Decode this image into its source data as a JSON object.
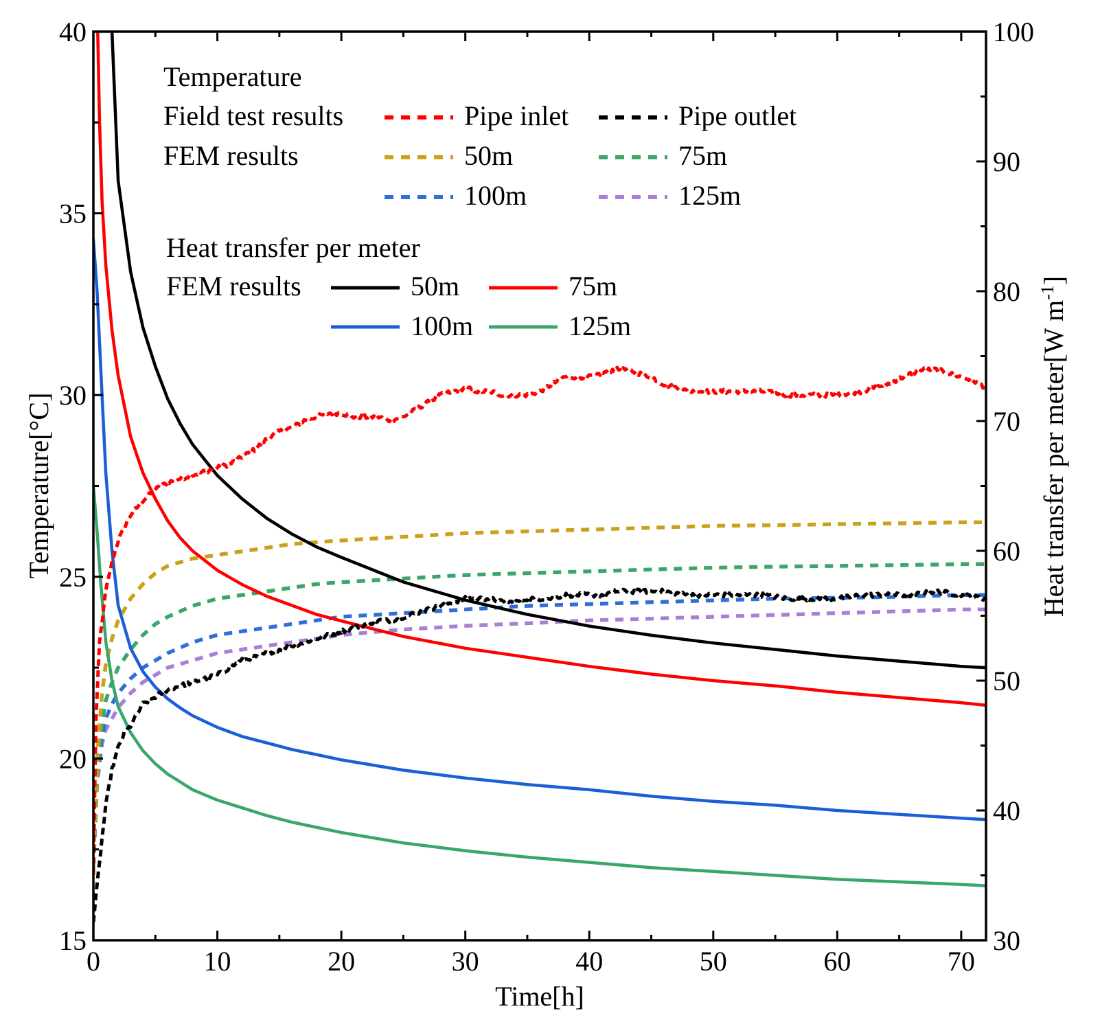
{
  "chart_data": {
    "type": "line",
    "xlabel": "Time[h]",
    "ylabel_left": "Temperature[°C]",
    "ylabel_right_main": "Heat transfer per meter[W m",
    "ylabel_right_sup": "-1",
    "ylabel_right_end": "]",
    "xlim": [
      0,
      72
    ],
    "ylim_left": [
      15,
      40
    ],
    "ylim_right": [
      30,
      100
    ],
    "x_ticks": [
      "0",
      "10",
      "20",
      "30",
      "40",
      "50",
      "60",
      "70"
    ],
    "y_left_ticks": [
      "15",
      "20",
      "25",
      "30",
      "35",
      "40"
    ],
    "y_right_ticks": [
      "30",
      "40",
      "50",
      "60",
      "70",
      "80",
      "90",
      "100"
    ],
    "legend": {
      "temperature_title": "Temperature",
      "field_label": "Field test results",
      "fem_label": "FEM results",
      "heat_title": "Heat transfer per meter",
      "heat_fem_label": "FEM results"
    },
    "temperature_series": [
      {
        "name": "Pipe inlet",
        "group": "Field test results",
        "color": "#ff0000",
        "noisy": true,
        "x": [
          0,
          0.2,
          0.5,
          1,
          1.5,
          2,
          3,
          4,
          5,
          6,
          7,
          8,
          9,
          10,
          11,
          12,
          13,
          14,
          15,
          16,
          17,
          18,
          19,
          20,
          21,
          22,
          23,
          24,
          25,
          26,
          27,
          28,
          29,
          30,
          31,
          32,
          33,
          34,
          35,
          36,
          37,
          38,
          39,
          40,
          41,
          42,
          43,
          44,
          45,
          46,
          47,
          48,
          49,
          50,
          52,
          54,
          56,
          58,
          60,
          62,
          64,
          66,
          67,
          68,
          69,
          70,
          71,
          72
        ],
        "y": [
          16.8,
          21,
          23.2,
          24.6,
          25.4,
          26,
          26.7,
          27.1,
          27.4,
          27.6,
          27.7,
          27.8,
          27.9,
          28,
          28.1,
          28.3,
          28.5,
          28.8,
          29,
          29.1,
          29.3,
          29.4,
          29.5,
          29.5,
          29.4,
          29.4,
          29.4,
          29.3,
          29.4,
          29.6,
          29.8,
          30,
          30.1,
          30.2,
          30.1,
          30.1,
          30,
          30,
          30,
          30.1,
          30.3,
          30.5,
          30.5,
          30.5,
          30.6,
          30.7,
          30.7,
          30.6,
          30.5,
          30.3,
          30.2,
          30.1,
          30.1,
          30.1,
          30.1,
          30.1,
          30,
          30,
          30,
          30.1,
          30.3,
          30.6,
          30.7,
          30.7,
          30.6,
          30.5,
          30.4,
          30.2
        ]
      },
      {
        "name": "Pipe outlet",
        "group": "Field test results",
        "color": "#000000",
        "noisy": true,
        "x": [
          0,
          0.3,
          0.7,
          1,
          1.5,
          2,
          2.5,
          3,
          3.5,
          4,
          5,
          6,
          7,
          8,
          9,
          10,
          11,
          12,
          13,
          14,
          15,
          16,
          17,
          18,
          19,
          20,
          21,
          22,
          23,
          24,
          25,
          26,
          27,
          28,
          29,
          30,
          31,
          32,
          33,
          34,
          35,
          36,
          37,
          38,
          39,
          40,
          41,
          42,
          43,
          44,
          45,
          46,
          48,
          50,
          52,
          54,
          56,
          58,
          60,
          62,
          64,
          66,
          68,
          70,
          72
        ],
        "y": [
          15.5,
          16.5,
          17.8,
          18.7,
          19.7,
          20.3,
          20.7,
          20.9,
          21.2,
          21.5,
          21.7,
          21.9,
          22,
          22.1,
          22.2,
          22.3,
          22.5,
          22.7,
          22.8,
          22.9,
          23,
          23.1,
          23.2,
          23.3,
          23.4,
          23.5,
          23.6,
          23.7,
          23.8,
          23.8,
          23.9,
          24,
          24.1,
          24.2,
          24.3,
          24.4,
          24.4,
          24.4,
          24.3,
          24.3,
          24.4,
          24.4,
          24.4,
          24.5,
          24.5,
          24.5,
          24.5,
          24.6,
          24.6,
          24.6,
          24.6,
          24.6,
          24.5,
          24.5,
          24.5,
          24.5,
          24.4,
          24.4,
          24.4,
          24.5,
          24.5,
          24.5,
          24.6,
          24.5,
          24.4
        ]
      },
      {
        "name": "50m",
        "group": "FEM results",
        "color": "#c9a21b",
        "x": [
          0,
          0.3,
          0.7,
          1,
          1.5,
          2,
          3,
          4,
          5,
          6,
          8,
          10,
          12,
          14,
          16,
          18,
          20,
          25,
          30,
          35,
          40,
          45,
          50,
          55,
          60,
          65,
          70,
          72
        ],
        "y": [
          17,
          20,
          21.8,
          22.6,
          23.3,
          23.8,
          24.4,
          24.8,
          25.1,
          25.3,
          25.5,
          25.6,
          25.7,
          25.8,
          25.9,
          25.95,
          26,
          26.1,
          26.2,
          26.25,
          26.3,
          26.35,
          26.4,
          26.42,
          26.45,
          26.47,
          26.5,
          26.5
        ]
      },
      {
        "name": "75m",
        "group": "FEM results",
        "color": "#3aa66b",
        "x": [
          0,
          0.3,
          0.7,
          1,
          1.5,
          2,
          3,
          4,
          5,
          6,
          8,
          10,
          12,
          14,
          16,
          18,
          20,
          25,
          30,
          35,
          40,
          45,
          50,
          55,
          60,
          65,
          70,
          72
        ],
        "y": [
          17,
          19.5,
          21,
          21.6,
          22.1,
          22.5,
          23,
          23.4,
          23.7,
          23.9,
          24.2,
          24.4,
          24.5,
          24.6,
          24.7,
          24.8,
          24.85,
          24.95,
          25.05,
          25.1,
          25.15,
          25.2,
          25.25,
          25.28,
          25.3,
          25.32,
          25.35,
          25.35
        ]
      },
      {
        "name": "100m",
        "group": "FEM results",
        "color": "#2f6fd8",
        "x": [
          0,
          0.3,
          0.7,
          1,
          1.5,
          2,
          3,
          4,
          5,
          6,
          8,
          10,
          12,
          14,
          16,
          18,
          20,
          25,
          30,
          35,
          40,
          45,
          50,
          55,
          60,
          65,
          70,
          72
        ],
        "y": [
          17,
          19.5,
          20.6,
          21.1,
          21.5,
          21.8,
          22.2,
          22.5,
          22.7,
          22.9,
          23.2,
          23.4,
          23.5,
          23.6,
          23.7,
          23.8,
          23.9,
          24,
          24.1,
          24.2,
          24.25,
          24.3,
          24.35,
          24.4,
          24.42,
          24.45,
          24.5,
          24.5
        ]
      },
      {
        "name": "125m",
        "group": "FEM results",
        "color": "#a97fd6",
        "x": [
          0,
          0.3,
          0.7,
          1,
          1.5,
          2,
          3,
          4,
          5,
          6,
          8,
          10,
          12,
          14,
          16,
          18,
          20,
          25,
          30,
          35,
          40,
          45,
          50,
          55,
          60,
          65,
          70,
          72
        ],
        "y": [
          17,
          19.3,
          20.4,
          20.8,
          21.1,
          21.4,
          21.8,
          22.1,
          22.3,
          22.5,
          22.7,
          22.9,
          23,
          23.1,
          23.2,
          23.3,
          23.4,
          23.55,
          23.65,
          23.72,
          23.8,
          23.85,
          23.9,
          23.95,
          24,
          24.05,
          24.1,
          24.1
        ]
      }
    ],
    "heat_series": [
      {
        "name": "50m",
        "color": "#000000",
        "x": [
          1.5,
          2,
          3,
          4,
          5,
          6,
          7,
          8,
          10,
          12,
          14,
          16,
          18,
          20,
          25,
          30,
          35,
          40,
          45,
          50,
          55,
          60,
          65,
          70,
          72
        ],
        "y": [
          100,
          88.5,
          81.5,
          77.2,
          74.2,
          71.7,
          69.8,
          68.2,
          65.8,
          64,
          62.5,
          61.3,
          60.3,
          59.5,
          57.6,
          56.2,
          55.1,
          54.2,
          53.5,
          52.9,
          52.4,
          51.9,
          51.5,
          51.1,
          51
        ]
      },
      {
        "name": "75m",
        "color": "#ff0000",
        "x": [
          0.35,
          0.5,
          0.7,
          1,
          1.5,
          2,
          3,
          4,
          5,
          6,
          7,
          8,
          10,
          12,
          14,
          16,
          18,
          20,
          25,
          30,
          35,
          40,
          45,
          50,
          55,
          60,
          65,
          70,
          72
        ],
        "y": [
          100,
          93,
          87,
          82,
          77,
          73.5,
          68.8,
          66,
          64,
          62.3,
          61,
          60,
          58.5,
          57.4,
          56.5,
          55.8,
          55.1,
          54.6,
          53.4,
          52.5,
          51.8,
          51.1,
          50.5,
          50,
          49.6,
          49.1,
          48.7,
          48.3,
          48.1
        ]
      },
      {
        "name": "100m",
        "color": "#1a5fd6",
        "x": [
          0,
          0.3,
          0.6,
          1,
          1.5,
          2,
          3,
          4,
          5,
          6,
          7,
          8,
          10,
          12,
          14,
          16,
          18,
          20,
          25,
          30,
          35,
          40,
          45,
          50,
          55,
          60,
          65,
          70,
          72
        ],
        "y": [
          84,
          80,
          74,
          66,
          60,
          55.8,
          52.5,
          50.7,
          49.5,
          48.6,
          47.9,
          47.3,
          46.4,
          45.7,
          45.2,
          44.7,
          44.3,
          43.9,
          43.1,
          42.5,
          42,
          41.6,
          41.1,
          40.7,
          40.4,
          40,
          39.7,
          39.4,
          39.3
        ]
      },
      {
        "name": "125m",
        "color": "#3aa66b",
        "x": [
          0,
          0.3,
          0.6,
          1,
          1.5,
          2,
          3,
          4,
          5,
          6,
          7,
          8,
          10,
          12,
          14,
          16,
          18,
          20,
          25,
          30,
          35,
          40,
          45,
          50,
          55,
          60,
          65,
          70,
          72
        ],
        "y": [
          65,
          61.5,
          57.5,
          53,
          50,
          48,
          46,
          44.6,
          43.6,
          42.8,
          42.2,
          41.6,
          40.8,
          40.2,
          39.6,
          39.1,
          38.7,
          38.3,
          37.5,
          36.9,
          36.4,
          36,
          35.6,
          35.3,
          35,
          34.7,
          34.5,
          34.3,
          34.2
        ]
      }
    ]
  }
}
